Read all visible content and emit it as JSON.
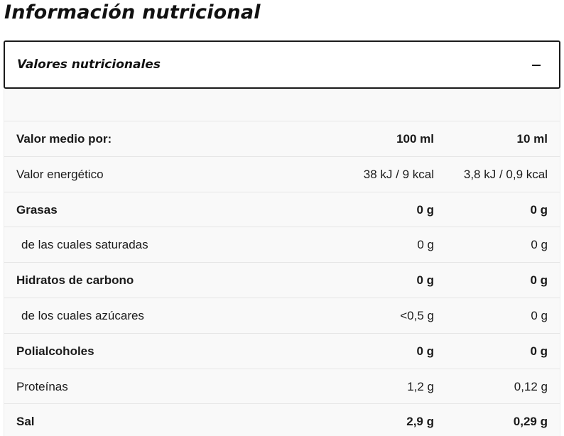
{
  "page": {
    "title": "Información nutricional"
  },
  "accordion": {
    "title": "Valores nutricionales",
    "icon": "minus-icon"
  },
  "table": {
    "header": {
      "label": "Valor medio por:",
      "col_100": "100 ml",
      "col_10": "10 ml"
    },
    "rows": [
      {
        "label": "Valor energético",
        "v100": "38 kJ / 9 kcal",
        "v10": "3,8 kJ / 0,9 kcal",
        "bold": false,
        "sub": false
      },
      {
        "label": "Grasas",
        "v100": "0 g",
        "v10": "0 g",
        "bold": true,
        "sub": false
      },
      {
        "label": "de las cuales saturadas",
        "v100": "0 g",
        "v10": "0 g",
        "bold": false,
        "sub": true
      },
      {
        "label": "Hidratos de carbono",
        "v100": "0 g",
        "v10": "0 g",
        "bold": true,
        "sub": false
      },
      {
        "label": "de los cuales azúcares",
        "v100": "<0,5 g",
        "v10": "0 g",
        "bold": false,
        "sub": true
      },
      {
        "label": "Polialcoholes",
        "v100": "0 g",
        "v10": "0 g",
        "bold": true,
        "sub": false
      },
      {
        "label": "Proteínas",
        "v100": "1,2 g",
        "v10": "0,12 g",
        "bold": false,
        "sub": false
      },
      {
        "label": "Sal",
        "v100": "2,9 g",
        "v10": "0,29 g",
        "bold": true,
        "sub": false
      }
    ]
  },
  "colors": {
    "text": "#111111",
    "table_background": "#f9f9f9",
    "row_divider": "#e6e6e6",
    "accordion_border": "#1a1a1a"
  }
}
